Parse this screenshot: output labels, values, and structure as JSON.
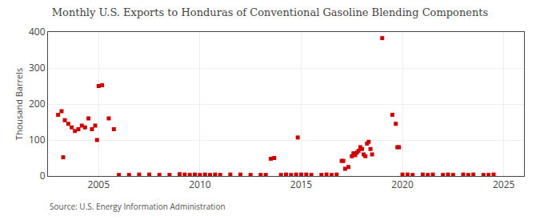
{
  "chart_data": {
    "type": "scatter",
    "title": "Monthly U.S. Exports to Honduras of Conventional Gasoline Blending Components",
    "ylabel": "Thousand Barrels",
    "annotations": [
      "Source: U.S. Energy Information Administration"
    ],
    "color": "#cc0000",
    "marker": "square",
    "grid": true,
    "xlim": [
      2002.5,
      2026
    ],
    "ylim": [
      0,
      400
    ],
    "xticks": [
      2005,
      2010,
      2015,
      2020,
      2025
    ],
    "yticks": [
      0,
      100,
      200,
      300,
      400
    ],
    "x": [
      2003.0,
      2003.17,
      2003.33,
      2003.5,
      2003.67,
      2003.83,
      2004.0,
      2004.17,
      2004.33,
      2004.5,
      2004.67,
      2004.83,
      2003.25,
      2004.92,
      2005.0,
      2005.17,
      2005.5,
      2005.75,
      2006.0,
      2006.5,
      2007.0,
      2007.5,
      2008.0,
      2008.5,
      2009.0,
      2009.25,
      2009.5,
      2009.75,
      2010.0,
      2010.25,
      2010.5,
      2010.75,
      2011.0,
      2011.5,
      2012.0,
      2012.5,
      2013.0,
      2013.25,
      2013.5,
      2013.67,
      2014.0,
      2014.25,
      2014.5,
      2014.75,
      2014.83,
      2015.0,
      2015.25,
      2015.5,
      2016.0,
      2016.25,
      2016.5,
      2016.75,
      2017.0,
      2017.08,
      2017.17,
      2017.33,
      2017.5,
      2017.58,
      2017.67,
      2017.75,
      2017.83,
      2017.92,
      2018.0,
      2018.08,
      2018.17,
      2018.25,
      2018.33,
      2018.42,
      2018.5,
      2019.0,
      2019.5,
      2019.67,
      2019.75,
      2019.83,
      2020.0,
      2020.25,
      2020.5,
      2021.0,
      2021.25,
      2021.5,
      2022.0,
      2022.25,
      2022.5,
      2023.0,
      2023.25,
      2023.5,
      2024.0,
      2024.25,
      2024.5
    ],
    "values": [
      170,
      180,
      155,
      145,
      135,
      125,
      130,
      140,
      135,
      160,
      130,
      140,
      52,
      100,
      250,
      252,
      160,
      130,
      3,
      3,
      4,
      4,
      3,
      3,
      5,
      4,
      3,
      4,
      3,
      4,
      3,
      4,
      3,
      4,
      4,
      3,
      3,
      3,
      48,
      50,
      3,
      4,
      3,
      4,
      107,
      4,
      4,
      3,
      3,
      4,
      3,
      4,
      42,
      42,
      20,
      25,
      55,
      63,
      58,
      65,
      70,
      80,
      75,
      60,
      55,
      90,
      95,
      75,
      60,
      383,
      170,
      145,
      80,
      80,
      4,
      4,
      3,
      4,
      3,
      4,
      3,
      4,
      3,
      4,
      3,
      4,
      3,
      3,
      4
    ]
  }
}
